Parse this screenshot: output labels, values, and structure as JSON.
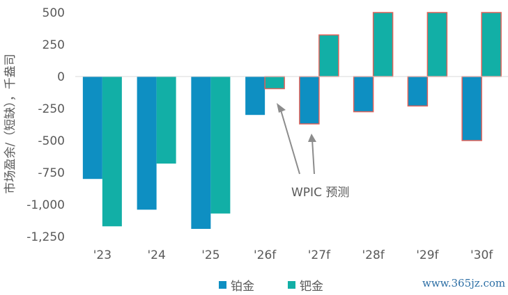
{
  "chart_data": {
    "type": "bar",
    "categories": [
      "'23",
      "'24",
      "'25",
      "'26f",
      "'27f",
      "'28f",
      "'29f",
      "'30f"
    ],
    "series": [
      {
        "name": "铂金",
        "color": "#0E8FC2",
        "values": [
          -800,
          -1040,
          -1190,
          -300,
          -370,
          -275,
          -230,
          -500
        ],
        "forecast_outline": [
          false,
          false,
          false,
          false,
          true,
          true,
          true,
          true
        ]
      },
      {
        "name": "钯金",
        "color": "#12AFA6",
        "values": [
          -1170,
          -680,
          -1070,
          -95,
          325,
          500,
          500,
          500
        ],
        "forecast_outline": [
          false,
          false,
          false,
          true,
          true,
          true,
          true,
          true
        ]
      }
    ],
    "outline_color": "#E0625A",
    "ylabel": "市场盈余/（短缺），千盎司",
    "ylim": [
      -1250,
      500
    ],
    "yticks": [
      500,
      250,
      0,
      -250,
      -500,
      -750,
      -1000,
      -1250
    ],
    "ytick_labels": [
      "500",
      "250",
      "0",
      "-250",
      "-500",
      "-750",
      "-1,000",
      "-1,250"
    ],
    "annotation": "WPIC 预测",
    "legend_position": "bottom",
    "grid": false
  },
  "watermark": "www.365jz.com"
}
